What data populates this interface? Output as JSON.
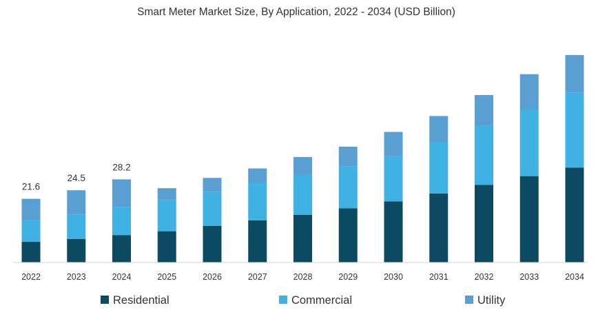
{
  "chart_data": {
    "type": "bar",
    "stacked": true,
    "title": "Smart Meter Market Size, By Application, 2022 - 2034 (USD Billion)",
    "xlabel": "",
    "ylabel": "",
    "ylim": [
      0,
      72
    ],
    "grid": false,
    "legend_position": "bottom",
    "categories": [
      "2022",
      "2023",
      "2024",
      "2025",
      "2026",
      "2027",
      "2028",
      "2029",
      "2030",
      "2031",
      "2032",
      "2033",
      "2034"
    ],
    "series": [
      {
        "name": "Residential",
        "color": "#0b4a60",
        "values": [
          7.0,
          8.0,
          9.3,
          10.6,
          12.4,
          14.3,
          16.2,
          18.4,
          20.7,
          23.4,
          26.3,
          29.3,
          32.2
        ]
      },
      {
        "name": "Commercial",
        "color": "#3fb1e3",
        "values": [
          7.4,
          8.3,
          9.6,
          10.5,
          11.5,
          12.7,
          13.5,
          14.3,
          15.4,
          17.5,
          20.2,
          22.6,
          25.5
        ]
      },
      {
        "name": "Utility",
        "color": "#5a9fd2",
        "values": [
          7.2,
          8.2,
          9.3,
          4.1,
          4.8,
          4.9,
          6.1,
          6.6,
          8.2,
          8.8,
          10.3,
          12.0,
          12.7
        ]
      }
    ],
    "data_labels": [
      "21.6",
      "24.5",
      "28.2",
      "",
      "",
      "",
      "",
      "",
      "",
      "",
      "",
      "",
      ""
    ]
  }
}
